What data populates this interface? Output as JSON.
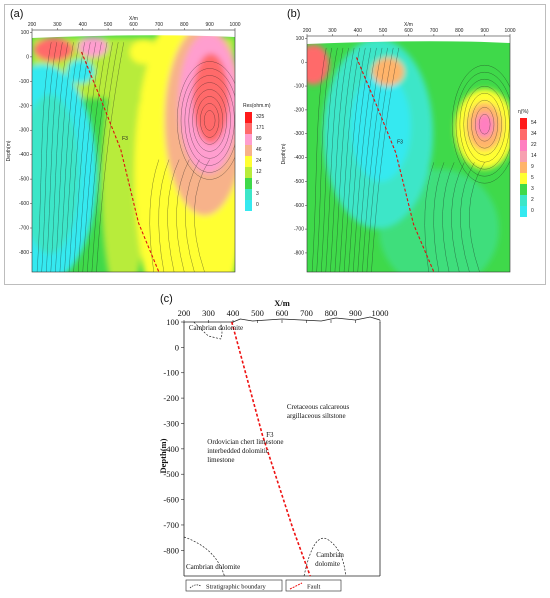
{
  "chart_data": [
    {
      "type": "heatmap",
      "panel_label": "(a)",
      "xlabel": "X/m",
      "ylabel": "Depth(m)",
      "x_ticks": [
        200,
        300,
        400,
        500,
        600,
        700,
        800,
        900,
        1000
      ],
      "y_ticks": [
        100,
        0,
        -100,
        -200,
        -300,
        -400,
        -500,
        -600,
        -700,
        -800
      ],
      "xlim": [
        200,
        1000
      ],
      "ylim": [
        -880,
        110
      ],
      "colorbar_title": "Res(ohm.m)",
      "colorbar_ticks": [
        "325",
        "171",
        "89",
        "46",
        "24",
        "12",
        "6",
        "3",
        "0"
      ],
      "colorbar_colors": [
        "#ff1a1a",
        "#ff6a6a",
        "#ff9ecf",
        "#f7b28a",
        "#ffff33",
        "#b8ec3a",
        "#3fd94a",
        "#3ce6c8",
        "#35e9f0"
      ],
      "fault_label": "F3",
      "fault_line": [
        [
          395,
          20
        ],
        [
          470,
          -170
        ],
        [
          550,
          -380
        ],
        [
          620,
          -680
        ],
        [
          700,
          -880
        ]
      ]
    },
    {
      "type": "heatmap",
      "panel_label": "(b)",
      "xlabel": "X/m",
      "ylabel": "Depth(m)",
      "x_ticks": [
        200,
        300,
        400,
        500,
        600,
        700,
        800,
        900,
        1000
      ],
      "y_ticks": [
        100,
        0,
        -100,
        -200,
        -300,
        -400,
        -500,
        -600,
        -700,
        -800
      ],
      "xlim": [
        200,
        1000
      ],
      "ylim": [
        -880,
        110
      ],
      "colorbar_title": "η(%)",
      "colorbar_ticks": [
        "54",
        "34",
        "22",
        "14",
        "9",
        "5",
        "3",
        "2",
        "0"
      ],
      "colorbar_colors": [
        "#ff1a1a",
        "#ff6a6a",
        "#ff7fc0",
        "#f7a0b0",
        "#ffb46a",
        "#ffff33",
        "#3fd94a",
        "#3ce6c8",
        "#35e9f0"
      ],
      "fault_label": "F3",
      "fault_line": [
        [
          395,
          20
        ],
        [
          470,
          -170
        ],
        [
          550,
          -380
        ],
        [
          620,
          -680
        ],
        [
          700,
          -880
        ]
      ]
    }
  ],
  "panel_c": {
    "panel_label": "(c)",
    "xlabel": "X/m",
    "ylabel": "Depth(m)",
    "x_ticks": [
      "200",
      "300",
      "400",
      "500",
      "600",
      "700",
      "800",
      "900",
      "1000"
    ],
    "y_ticks": [
      "100",
      "0",
      "-100",
      "-200",
      "-300",
      "-400",
      "-500",
      "-600",
      "-700",
      "-800"
    ],
    "fault_label": "F3",
    "texts": {
      "cambrian_top": "Cambrian dolomite",
      "cretaceous_1": "Cretaceous calcareous",
      "cretaceous_2": "argillaceous siltstone",
      "ordovician_1": "Ordovician chert limestone",
      "ordovician_2": "interbedded dolomitic",
      "ordovician_3": "limestone",
      "cambrian_left": "Cambrian dolomite",
      "cambrian_right_1": "Cambrian",
      "cambrian_right_2": "dolomite"
    },
    "legend": {
      "strat": "Stratigraphic boundary",
      "fault": "Fault"
    }
  }
}
